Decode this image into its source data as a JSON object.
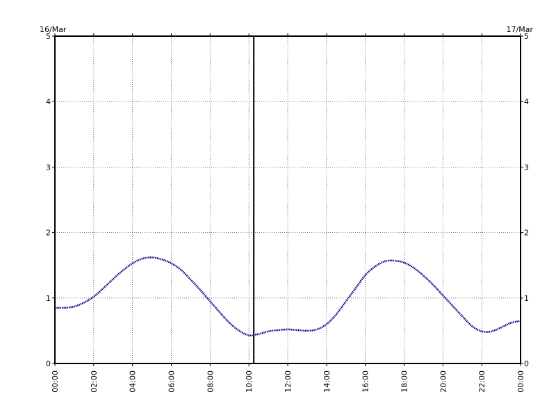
{
  "chart_data": {
    "type": "line",
    "title": "",
    "xlabel": "",
    "ylabel": "",
    "date_labels": {
      "start": "16/Mar",
      "end": "17/Mar"
    },
    "xlim_hours": [
      0,
      24
    ],
    "ylim": [
      0,
      5
    ],
    "y_ticks": [
      0,
      1,
      2,
      3,
      4,
      5
    ],
    "x_tick_labels": [
      "00:00",
      "02:00",
      "04:00",
      "06:00",
      "08:00",
      "10:00",
      "12:00",
      "14:00",
      "16:00",
      "18:00",
      "20:00",
      "22:00",
      "00:00"
    ],
    "grid": true,
    "current_time_hours": 10.25,
    "series": [
      {
        "color": "#00008b",
        "x": [
          0,
          0.5,
          1,
          1.5,
          2,
          2.5,
          3,
          3.5,
          4,
          4.5,
          5,
          5.5,
          6,
          6.5,
          7,
          7.5,
          8,
          8.5,
          9,
          9.5,
          10,
          10.5,
          11,
          11.5,
          12,
          12.5,
          13,
          13.5,
          14,
          14.5,
          15,
          15.5,
          16,
          16.5,
          17,
          17.5,
          18,
          18.5,
          19,
          19.5,
          20,
          20.5,
          21,
          21.5,
          22,
          22.5,
          23,
          23.5,
          24
        ],
        "y": [
          0.85,
          0.85,
          0.87,
          0.93,
          1.02,
          1.15,
          1.29,
          1.42,
          1.53,
          1.6,
          1.62,
          1.59,
          1.53,
          1.43,
          1.28,
          1.12,
          0.95,
          0.78,
          0.62,
          0.5,
          0.43,
          0.45,
          0.49,
          0.51,
          0.52,
          0.51,
          0.5,
          0.52,
          0.6,
          0.75,
          0.95,
          1.15,
          1.35,
          1.48,
          1.56,
          1.57,
          1.54,
          1.46,
          1.34,
          1.2,
          1.04,
          0.88,
          0.72,
          0.57,
          0.49,
          0.49,
          0.55,
          0.62,
          0.65
        ]
      }
    ]
  }
}
